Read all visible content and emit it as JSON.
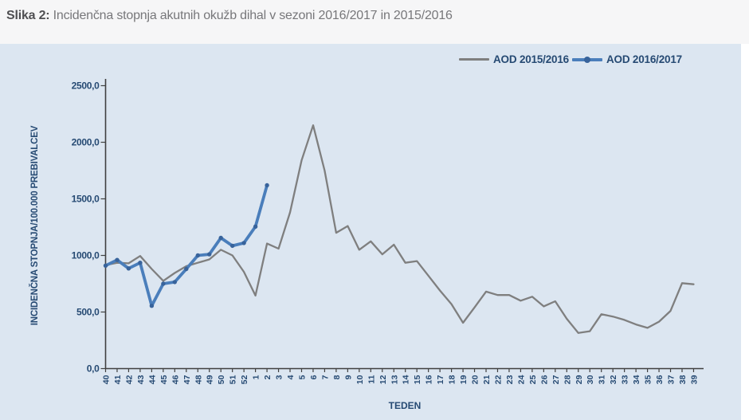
{
  "figure": {
    "label": "Slika 2:",
    "title": " Incidenčna stopnja akutnih okužb dihal v sezoni 2016/2017 in 2015/2016"
  },
  "colors": {
    "panel_background": "#dce6f1",
    "axis_text": "#264a73",
    "axis_line": "#404040",
    "series_2015_2016": "#7f7f7f",
    "series_2016_2017": "#4a7ebb",
    "marker_2016_2017": "#38639b"
  },
  "chart_data": {
    "type": "line",
    "title": "",
    "xlabel": "TEDEN",
    "ylabel": "INCIDENČNA  STOPNJA/100.000  PREBIVALCEV",
    "ylim": [
      0,
      2500
    ],
    "ytick_step": 500,
    "ytick_labels": [
      "0,0",
      "500,0",
      "1000,0",
      "1500,0",
      "2000,0",
      "2500,0"
    ],
    "grid": false,
    "legend_position": "top-right",
    "categories": [
      "40",
      "41",
      "42",
      "43",
      "44",
      "45",
      "46",
      "47",
      "48",
      "49",
      "50",
      "51",
      "52",
      "1",
      "2",
      "3",
      "4",
      "5",
      "6",
      "7",
      "8",
      "9",
      "10",
      "11",
      "12",
      "13",
      "14",
      "15",
      "16",
      "17",
      "18",
      "19",
      "20",
      "21",
      "22",
      "23",
      "24",
      "25",
      "26",
      "27",
      "28",
      "29",
      "30",
      "31",
      "32",
      "33",
      "34",
      "35",
      "36",
      "37",
      "38",
      "39"
    ],
    "series": [
      {
        "name": "AOD 2015/2016",
        "color": "#7f7f7f",
        "marker": false,
        "values": [
          915,
          935,
          930,
          995,
          880,
          775,
          845,
          905,
          935,
          965,
          1050,
          1000,
          855,
          645,
          1105,
          1060,
          1380,
          1840,
          2150,
          1750,
          1200,
          1260,
          1050,
          1125,
          1010,
          1095,
          935,
          950,
          820,
          690,
          570,
          405,
          540,
          680,
          650,
          650,
          600,
          635,
          550,
          595,
          440,
          315,
          330,
          480,
          460,
          430,
          390,
          360,
          415,
          510,
          755,
          745
        ]
      },
      {
        "name": "AOD 2016/2017",
        "color": "#4a7ebb",
        "marker": true,
        "marker_color": "#38639b",
        "values": [
          910,
          960,
          885,
          935,
          555,
          750,
          765,
          880,
          1000,
          1010,
          1155,
          1085,
          1110,
          1255,
          1620
        ]
      }
    ]
  }
}
